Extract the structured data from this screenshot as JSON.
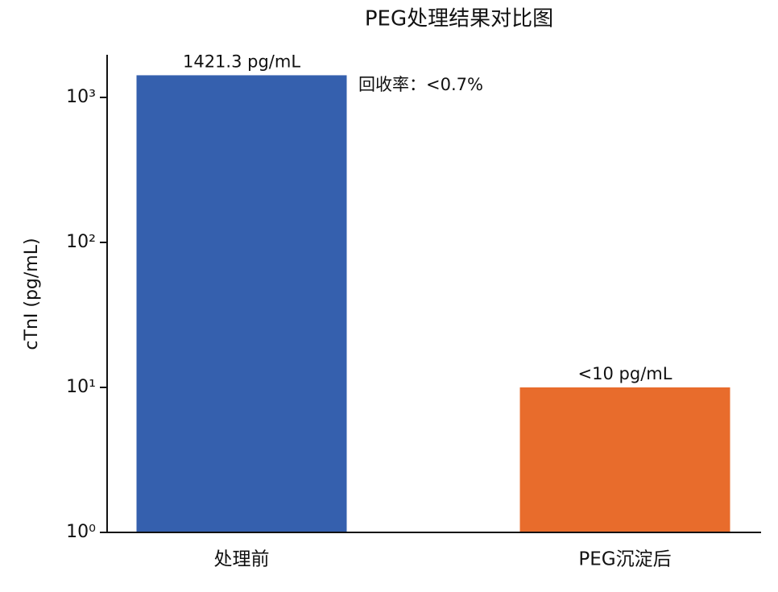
{
  "chart_data": {
    "type": "bar",
    "title": "PEG处理结果对比图",
    "y_label": "cTnI (pg/mL)",
    "categories": [
      "处理前",
      "PEG沉淀后"
    ],
    "values": [
      1421.3,
      10
    ],
    "value_labels": [
      "1421.3 pg/mL",
      "<10 pg/mL"
    ],
    "colors": [
      "#3560ae",
      "#e86c2c"
    ],
    "annotation": "回收率：<0.7%",
    "y_scale": "log",
    "ylim": [
      1,
      1968
    ],
    "yticks": [
      {
        "value": 1,
        "label": "10⁰"
      },
      {
        "value": 10,
        "label": "10¹"
      },
      {
        "value": 100,
        "label": "10²"
      },
      {
        "value": 1000,
        "label": "10³"
      }
    ]
  }
}
